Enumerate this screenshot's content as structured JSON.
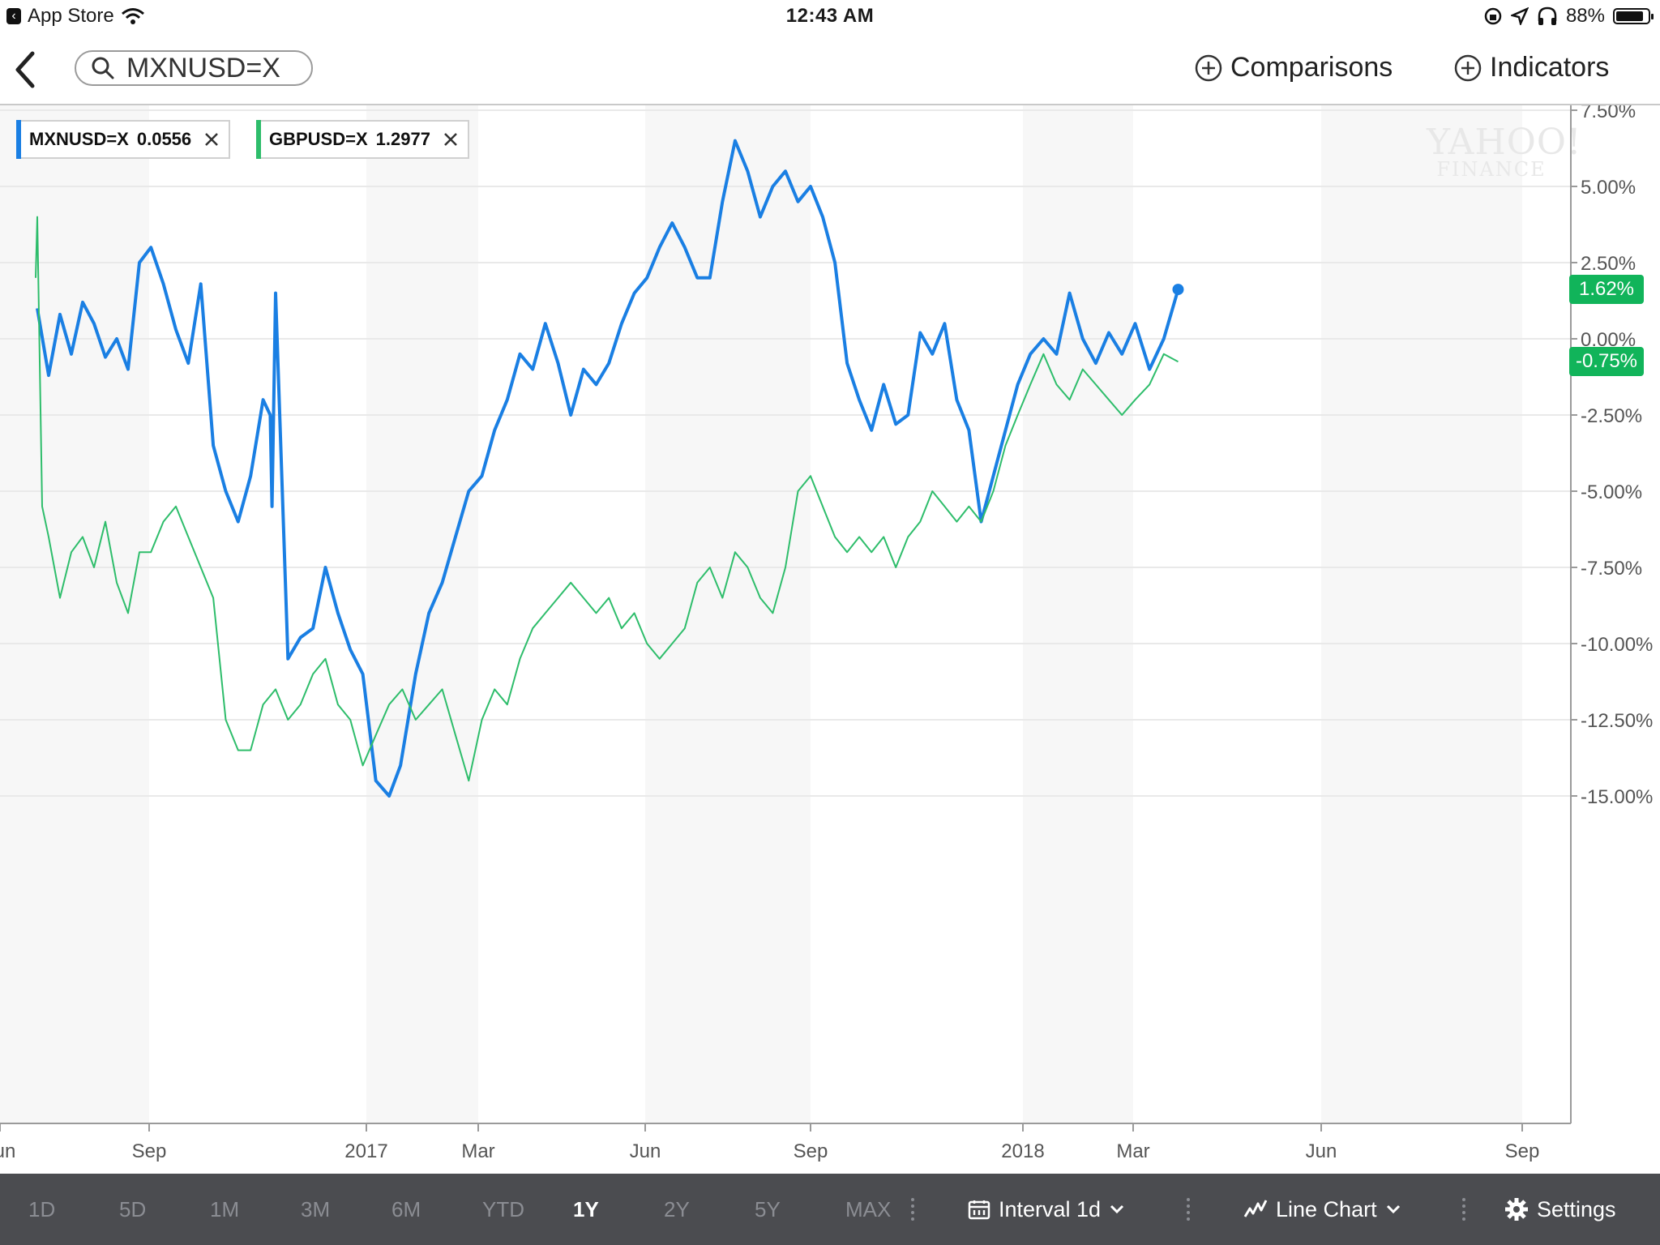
{
  "status_bar": {
    "back_app": "App Store",
    "time": "12:43 AM",
    "battery": "88%",
    "battery_level": 0.88
  },
  "nav": {
    "search_value": "MXNUSD=X",
    "comparisons_label": "Comparisons",
    "indicators_label": "Indicators"
  },
  "legend": [
    {
      "symbol": "MXNUSD=X",
      "value": "0.0556",
      "color": "#1a7fe3"
    },
    {
      "symbol": "GBPUSD=X",
      "value": "1.2977",
      "color": "#2ebd6b"
    }
  ],
  "watermark": {
    "top": "YAHOO!",
    "bottom": "FINANCE"
  },
  "toolbar": {
    "ranges": [
      "1D",
      "5D",
      "1M",
      "3M",
      "6M",
      "YTD",
      "1Y",
      "2Y",
      "5Y",
      "MAX"
    ],
    "active_range": "1Y",
    "interval_label": "Interval 1d",
    "chart_type_label": "Line Chart",
    "settings_label": "Settings"
  },
  "chart_data": {
    "type": "line",
    "x_labels": [
      "Jun",
      "Sep",
      "2017",
      "Mar",
      "Jun",
      "Sep",
      "2018",
      "Mar",
      "Jun",
      "Sep"
    ],
    "y_tick_labels": [
      "7.50%",
      "5.00%",
      "2.50%",
      "0.00%",
      "-2.50%",
      "-5.00%",
      "-7.50%",
      "-10.00%",
      "-12.50%",
      "-15.00%"
    ],
    "y_ticks": [
      7.5,
      5.0,
      2.5,
      0.0,
      -2.5,
      -5.0,
      -7.5,
      -10.0,
      -12.5,
      -15.0
    ],
    "ylim": [
      -16.5,
      8.5
    ],
    "last_value_tags": [
      {
        "label": "1.62%",
        "value": 1.62
      },
      {
        "label": "-0.75%",
        "value": -0.75
      }
    ],
    "series": [
      {
        "name": "MXNUSD=X",
        "color": "#1a7fe3",
        "x": [
          "2016-06-24",
          "2016-07-01",
          "2016-07-08",
          "2016-07-15",
          "2016-07-22",
          "2016-07-29",
          "2016-08-05",
          "2016-08-12",
          "2016-08-19",
          "2016-08-26",
          "2016-09-02",
          "2016-09-09",
          "2016-09-16",
          "2016-09-23",
          "2016-09-30",
          "2016-10-07",
          "2016-10-14",
          "2016-10-21",
          "2016-10-28",
          "2016-11-04",
          "2016-11-08",
          "2016-11-09",
          "2016-11-11",
          "2016-11-18",
          "2016-11-25",
          "2016-12-02",
          "2016-12-09",
          "2016-12-16",
          "2016-12-23",
          "2016-12-30",
          "2017-01-06",
          "2017-01-13",
          "2017-01-19",
          "2017-01-27",
          "2017-02-03",
          "2017-02-10",
          "2017-02-17",
          "2017-02-24",
          "2017-03-03",
          "2017-03-10",
          "2017-03-17",
          "2017-03-24",
          "2017-03-31",
          "2017-04-07",
          "2017-04-14",
          "2017-04-21",
          "2017-04-28",
          "2017-05-05",
          "2017-05-12",
          "2017-05-19",
          "2017-05-26",
          "2017-06-02",
          "2017-06-09",
          "2017-06-16",
          "2017-06-23",
          "2017-06-30",
          "2017-07-07",
          "2017-07-14",
          "2017-07-21",
          "2017-07-28",
          "2017-08-04",
          "2017-08-11",
          "2017-08-18",
          "2017-08-25",
          "2017-09-01",
          "2017-09-08",
          "2017-09-15",
          "2017-09-22",
          "2017-09-29",
          "2017-10-06",
          "2017-10-13",
          "2017-10-20",
          "2017-10-27",
          "2017-11-03",
          "2017-11-10",
          "2017-11-17",
          "2017-11-24",
          "2017-12-01",
          "2017-12-08",
          "2017-12-15",
          "2017-12-22",
          "2017-12-29",
          "2018-01-05",
          "2018-01-12",
          "2018-01-19",
          "2018-01-26",
          "2018-02-02",
          "2018-02-09",
          "2018-02-16",
          "2018-02-23",
          "2018-03-02",
          "2018-03-09",
          "2018-03-16",
          "2018-03-23"
        ],
        "values": [
          1.0,
          -1.2,
          0.8,
          -0.5,
          1.2,
          0.5,
          -0.6,
          0.0,
          -1.0,
          2.5,
          3.0,
          1.8,
          0.3,
          -0.8,
          1.8,
          -3.5,
          -5.0,
          -6.0,
          -4.5,
          -2.0,
          -2.5,
          -5.5,
          1.5,
          -10.5,
          -9.8,
          -9.5,
          -7.5,
          -9.0,
          -10.2,
          -11.0,
          -14.5,
          -15.0,
          -14.0,
          -11.0,
          -9.0,
          -8.0,
          -6.5,
          -5.0,
          -4.5,
          -3.0,
          -2.0,
          -0.5,
          -1.0,
          0.5,
          -0.8,
          -2.5,
          -1.0,
          -1.5,
          -0.8,
          0.5,
          1.5,
          2.0,
          3.0,
          3.8,
          3.0,
          2.0,
          2.0,
          4.5,
          6.5,
          5.5,
          4.0,
          5.0,
          5.5,
          4.5,
          5.0,
          4.0,
          2.5,
          -0.8,
          -2.0,
          -3.0,
          -1.5,
          -2.8,
          -2.5,
          0.2,
          -0.5,
          0.5,
          -2.0,
          -3.0,
          -6.0,
          -4.5,
          -3.0,
          -1.5,
          -0.5,
          0.0,
          -0.5,
          1.5,
          0.0,
          -0.8,
          0.2,
          -0.5,
          0.5,
          -1.0,
          0.0,
          1.62
        ]
      },
      {
        "name": "GBPUSD=X",
        "color": "#2ebd6b",
        "x": [
          "2016-06-23",
          "2016-06-24",
          "2016-06-27",
          "2016-07-01",
          "2016-07-08",
          "2016-07-15",
          "2016-07-22",
          "2016-07-29",
          "2016-08-05",
          "2016-08-12",
          "2016-08-19",
          "2016-08-26",
          "2016-09-02",
          "2016-09-09",
          "2016-09-16",
          "2016-09-23",
          "2016-09-30",
          "2016-10-07",
          "2016-10-14",
          "2016-10-21",
          "2016-10-28",
          "2016-11-04",
          "2016-11-11",
          "2016-11-18",
          "2016-11-25",
          "2016-12-02",
          "2016-12-09",
          "2016-12-16",
          "2016-12-23",
          "2016-12-30",
          "2017-01-06",
          "2017-01-13",
          "2017-01-20",
          "2017-01-27",
          "2017-02-03",
          "2017-02-10",
          "2017-02-17",
          "2017-02-24",
          "2017-03-03",
          "2017-03-10",
          "2017-03-17",
          "2017-03-24",
          "2017-03-31",
          "2017-04-07",
          "2017-04-14",
          "2017-04-21",
          "2017-04-28",
          "2017-05-05",
          "2017-05-12",
          "2017-05-19",
          "2017-05-26",
          "2017-06-02",
          "2017-06-09",
          "2017-06-16",
          "2017-06-23",
          "2017-06-30",
          "2017-07-07",
          "2017-07-14",
          "2017-07-21",
          "2017-07-28",
          "2017-08-04",
          "2017-08-11",
          "2017-08-18",
          "2017-08-25",
          "2017-09-01",
          "2017-09-08",
          "2017-09-15",
          "2017-09-22",
          "2017-09-29",
          "2017-10-06",
          "2017-10-13",
          "2017-10-20",
          "2017-10-27",
          "2017-11-03",
          "2017-11-10",
          "2017-11-17",
          "2017-11-24",
          "2017-12-01",
          "2017-12-08",
          "2017-12-15",
          "2017-12-22",
          "2017-12-29",
          "2018-01-05",
          "2018-01-12",
          "2018-01-19",
          "2018-01-26",
          "2018-02-02",
          "2018-02-09",
          "2018-02-16",
          "2018-02-23",
          "2018-03-02",
          "2018-03-09",
          "2018-03-16",
          "2018-03-23"
        ],
        "values": [
          2.0,
          4.0,
          -5.5,
          -6.5,
          -8.5,
          -7.0,
          -6.5,
          -7.5,
          -6.0,
          -8.0,
          -9.0,
          -7.0,
          -7.0,
          -6.0,
          -5.5,
          -6.5,
          -7.5,
          -8.5,
          -12.5,
          -13.5,
          -13.5,
          -12.0,
          -11.5,
          -12.5,
          -12.0,
          -11.0,
          -10.5,
          -12.0,
          -12.5,
          -14.0,
          -13.0,
          -12.0,
          -11.5,
          -12.5,
          -12.0,
          -11.5,
          -13.0,
          -14.5,
          -12.5,
          -11.5,
          -12.0,
          -10.5,
          -9.5,
          -9.0,
          -8.5,
          -8.0,
          -8.5,
          -9.0,
          -8.5,
          -9.5,
          -9.0,
          -10.0,
          -10.5,
          -10.0,
          -9.5,
          -8.0,
          -7.5,
          -8.5,
          -7.0,
          -7.5,
          -8.5,
          -9.0,
          -7.5,
          -5.0,
          -4.5,
          -5.5,
          -6.5,
          -7.0,
          -6.5,
          -7.0,
          -6.5,
          -7.5,
          -6.5,
          -6.0,
          -5.0,
          -5.5,
          -6.0,
          -5.5,
          -6.0,
          -5.0,
          -3.5,
          -2.5,
          -1.5,
          -0.5,
          -1.5,
          -2.0,
          -1.0,
          -1.5,
          -2.0,
          -2.5,
          -2.0,
          -1.5,
          -0.5,
          -0.75
        ]
      }
    ]
  }
}
